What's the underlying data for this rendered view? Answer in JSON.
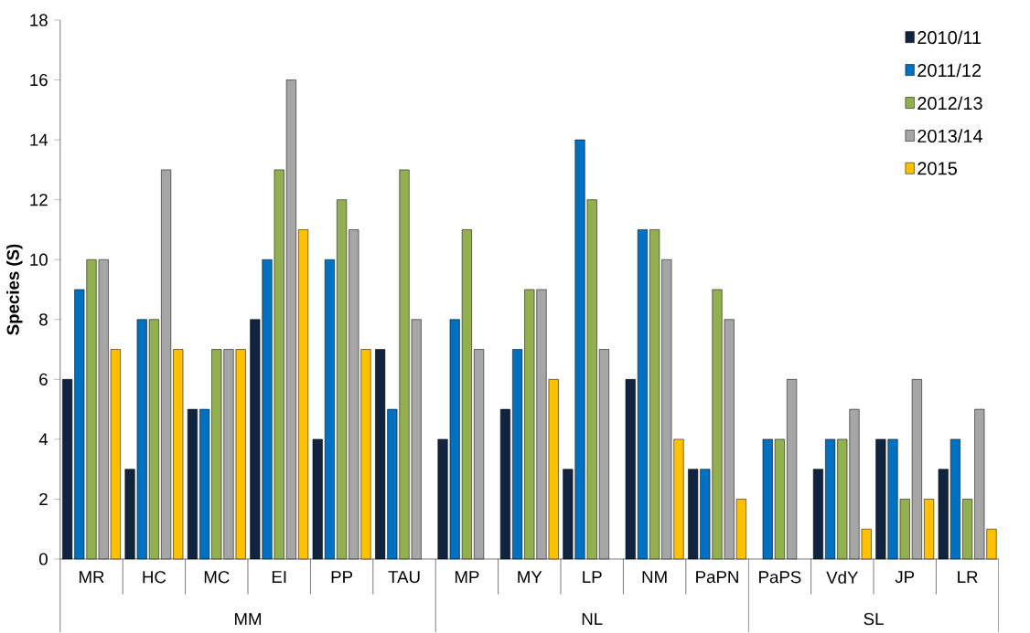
{
  "chart_data": {
    "type": "bar",
    "ylabel": "Species (S)",
    "categories": [
      "MR",
      "HC",
      "MC",
      "EI",
      "PP",
      "TAU",
      "MP",
      "MY",
      "LP",
      "NM",
      "PaPN",
      "PaPS",
      "VdY",
      "JP",
      "LR"
    ],
    "series": [
      {
        "name": "2010/11",
        "color": "#10233f",
        "values": [
          6,
          3,
          5,
          8,
          4,
          7,
          4,
          5,
          3,
          6,
          3,
          null,
          3,
          4,
          3
        ]
      },
      {
        "name": "2011/12",
        "color": "#0070c0",
        "values": [
          9,
          8,
          5,
          10,
          10,
          5,
          8,
          7,
          14,
          11,
          3,
          4,
          4,
          4,
          4
        ]
      },
      {
        "name": "2012/13",
        "color": "#92b050",
        "values": [
          10,
          8,
          7,
          13,
          12,
          13,
          11,
          9,
          12,
          11,
          9,
          4,
          4,
          2,
          2
        ]
      },
      {
        "name": "2013/14",
        "color": "#a6a6a6",
        "values": [
          10,
          13,
          7,
          16,
          11,
          8,
          7,
          9,
          7,
          10,
          8,
          6,
          5,
          6,
          5
        ]
      },
      {
        "name": "2015",
        "color": "#ffc000",
        "values": [
          7,
          7,
          7,
          11,
          7,
          null,
          null,
          6,
          null,
          4,
          2,
          null,
          1,
          2,
          1
        ]
      }
    ],
    "annotations": [
      "MM",
      "NL",
      "SL"
    ],
    "ylim": [
      0,
      18
    ],
    "yticks": [
      0,
      2,
      4,
      6,
      8,
      10,
      12,
      14,
      16,
      18
    ],
    "grid": false,
    "legend": "top right"
  }
}
